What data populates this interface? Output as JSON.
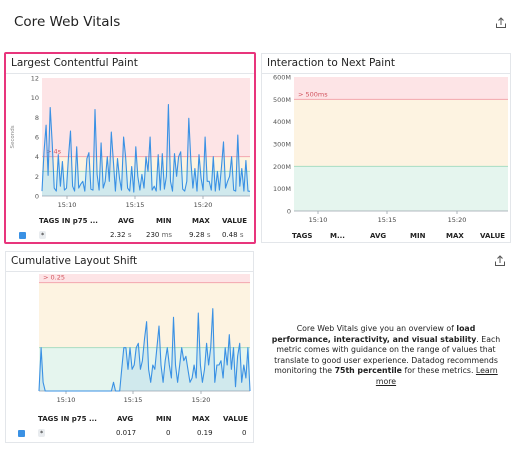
{
  "header": {
    "title": "Core Web Vitals",
    "share_icon": "share-icon"
  },
  "panels": {
    "lcp": {
      "title": "Largest Contentful Paint",
      "threshold_label": "> 4s",
      "axis_title": "Seconds",
      "y_ticks": [
        "12",
        "10",
        "8",
        "6",
        "4",
        "2",
        "0"
      ],
      "x_ticks": [
        "15:10",
        "15:15",
        "15:20"
      ],
      "table": {
        "headers": [
          "TAGS IN p75 ...",
          "AVG",
          "MIN",
          "MAX",
          "VALUE"
        ],
        "row": {
          "tag": "*",
          "avg": "2.32",
          "avg_unit": "s",
          "min": "230",
          "min_unit": "ms",
          "max": "9.28",
          "max_unit": "s",
          "value": "0.48",
          "value_unit": "s"
        }
      }
    },
    "inp": {
      "title": "Interaction to Next Paint",
      "threshold_label": "> 500ms",
      "y_ticks": [
        "600M",
        "500M",
        "400M",
        "300M",
        "200M",
        "100M",
        "0"
      ],
      "x_ticks": [
        "15:10",
        "15:15",
        "15:20"
      ],
      "table": {
        "headers": [
          "TAGS",
          "M...",
          "AVG",
          "MIN",
          "MAX",
          "VALUE"
        ]
      }
    },
    "cls": {
      "title": "Cumulative Layout Shift",
      "threshold_label": "> 0.25",
      "x_ticks": [
        "15:10",
        "15:15",
        "15:20"
      ],
      "table": {
        "headers": [
          "TAGS IN p75 ...",
          "AVG",
          "MIN",
          "MAX",
          "VALUE"
        ],
        "row": {
          "tag": "*",
          "avg": "0.017",
          "min": "0",
          "max": "0.19",
          "value": "0"
        }
      }
    },
    "info": {
      "line1_pre": "Core Web Vitals give you an overview of ",
      "line1_bold": "load performance, interactivity, and visual stability",
      "line1_post": ". Each metric comes with guidance on the range of values that translate to good user experience. Datadog recommends monitoring the ",
      "bold2": "75th percentile",
      "post2": " for these metrics. ",
      "link": "Learn more"
    }
  },
  "colors": {
    "series": "#3a91e4",
    "poor_zone": "#fde4e6",
    "needs_improvement_zone": "#fdf3e1",
    "good_zone": "#e5f5ee",
    "poor_line": "#f2a7ae",
    "ni_line": "#f5d59c",
    "good_line": "#a8dcc2",
    "selected_border": "#e8357c"
  },
  "chart_data": [
    {
      "type": "area",
      "title": "Largest Contentful Paint",
      "ylabel": "Seconds",
      "ylim": [
        0,
        12
      ],
      "x_ticks": [
        "15:10",
        "15:15",
        "15:20"
      ],
      "zones": {
        "poor_above": 4,
        "good_below": 2.5
      },
      "series": [
        {
          "values": [
            0.5,
            4.5,
            7.2,
            2.1,
            9.0,
            5.4,
            0.8,
            0.5,
            4.2,
            1.0,
            3.5,
            0.6,
            0.8,
            4.0,
            6.6,
            1.0,
            0.5,
            5.0,
            0.8,
            1.2,
            1.5,
            0.5,
            3.8,
            4.4,
            0.7,
            0.6,
            8.8,
            2.2,
            0.6,
            5.4,
            0.8,
            1.5,
            4.0,
            1.5,
            6.5,
            3.5,
            0.5,
            3.8,
            1.8,
            0.6,
            6.0,
            4.0,
            0.8,
            0.5,
            3.0,
            0.4,
            5.0,
            2.0,
            0.6,
            2.2,
            0.8,
            4.0,
            2.5,
            6.0,
            0.6,
            1.0,
            0.5,
            4.2,
            0.6,
            4.3,
            0.7,
            2.0,
            9.3,
            1.5,
            0.5,
            4.3,
            2.0,
            4.0,
            4.5,
            0.7,
            0.5,
            1.5,
            7.9,
            3.5,
            0.8,
            2.8,
            0.5,
            4.2,
            1.8,
            0.6,
            6.0,
            1.5,
            1.5,
            0.6,
            4.0,
            0.5,
            2.5,
            0.6,
            3.0,
            5.5,
            0.8,
            1.5,
            2.0,
            4.0,
            0.6,
            0.5,
            6.2,
            1.0,
            2.8,
            0.5,
            3.6,
            0.5,
            0.48
          ]
        }
      ]
    },
    {
      "type": "line",
      "title": "Interaction to Next Paint",
      "ylim": [
        0,
        600
      ],
      "x_ticks": [
        "15:10",
        "15:15",
        "15:20"
      ],
      "zones": {
        "poor_above": 500,
        "good_below": 200
      },
      "series": []
    },
    {
      "type": "area",
      "title": "Cumulative Layout Shift",
      "ylim": [
        0,
        0.27
      ],
      "x_ticks": [
        "15:10",
        "15:15",
        "15:20"
      ],
      "zones": {
        "poor_above": 0.25,
        "good_below": 0.1
      },
      "series": [
        {
          "values": [
            0,
            0.1,
            0.02,
            0,
            0,
            0,
            0,
            0,
            0,
            0,
            0,
            0,
            0,
            0,
            0,
            0,
            0,
            0,
            0,
            0,
            0,
            0,
            0,
            0,
            0,
            0,
            0,
            0,
            0,
            0,
            0,
            0,
            0,
            0,
            0,
            0,
            0.02,
            0,
            0,
            0,
            0.05,
            0.1,
            0.1,
            0.05,
            0.1,
            0.05,
            0.06,
            0.1,
            0.11,
            0.05,
            0.07,
            0.12,
            0.16,
            0.05,
            0.02,
            0.06,
            0.05,
            0.1,
            0.15,
            0.06,
            0.02,
            0.07,
            0.1,
            0.06,
            0.03,
            0.17,
            0.06,
            0.02,
            0.06,
            0.1,
            0.07,
            0.08,
            0.05,
            0.02,
            0.03,
            0.06,
            0.03,
            0.18,
            0.06,
            0.02,
            0.05,
            0.11,
            0.06,
            0.1,
            0.19,
            0.02,
            0.06,
            0.06,
            0.07,
            0.03,
            0.1,
            0.06,
            0.13,
            0.05,
            0.1,
            0.01,
            0.08,
            0.11,
            0.02,
            0.06,
            0.03,
            0.1,
            0
          ]
        }
      ]
    }
  ]
}
